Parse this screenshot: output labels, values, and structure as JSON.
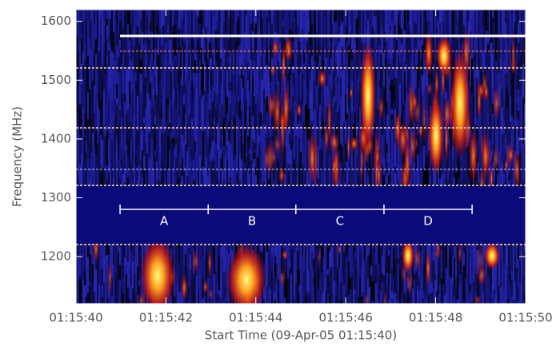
{
  "chart_data": {
    "type": "spectrogram",
    "x_label": "Start Time (09-Apr-05 01:15:40)",
    "y_label": "Frequency (MHz)",
    "xlim": [
      0,
      10
    ],
    "xticks": [
      {
        "value": 0,
        "label": "01:15:40"
      },
      {
        "value": 2,
        "label": "01:15:42"
      },
      {
        "value": 4,
        "label": "01:15:44"
      },
      {
        "value": 6,
        "label": "01:15:46"
      },
      {
        "value": 8,
        "label": "01:15:48"
      },
      {
        "value": 10,
        "label": "01:15:50"
      }
    ],
    "ylim": [
      1120,
      1620
    ],
    "yticks": [
      1200,
      1300,
      1400,
      1500,
      1600
    ],
    "intervals": {
      "boundaries": [
        0.98,
        2.94,
        4.89,
        6.85,
        8.81
      ],
      "labels": [
        "A",
        "B",
        "C",
        "D"
      ],
      "color": "#ffffff"
    }
  }
}
